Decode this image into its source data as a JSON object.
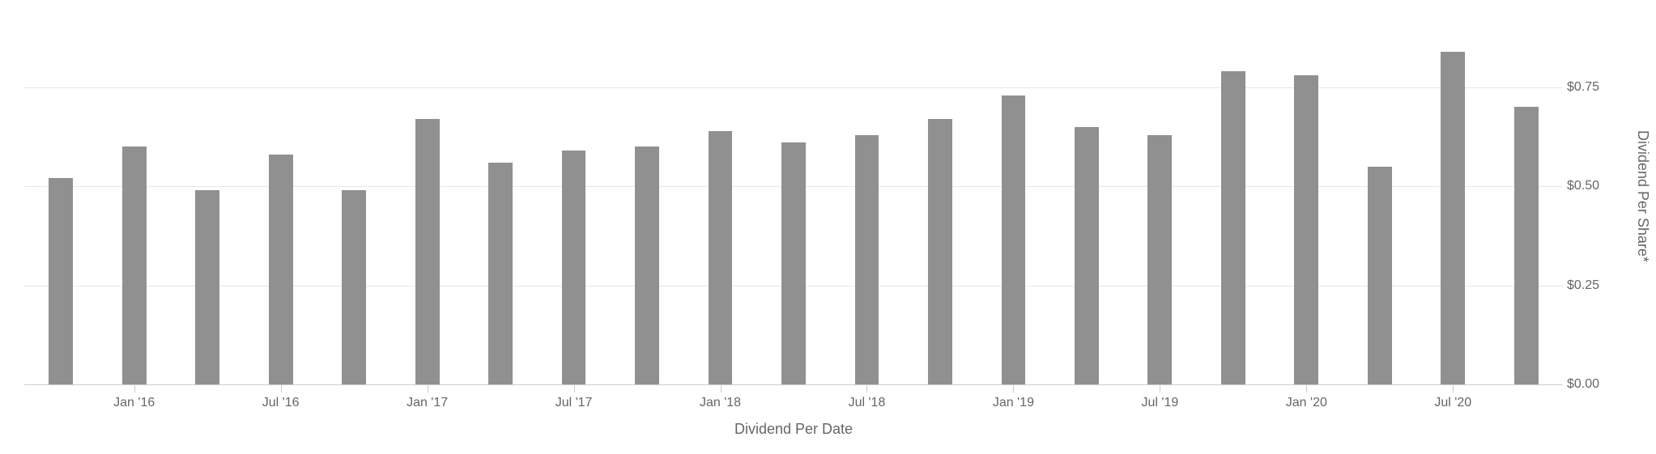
{
  "chart": {
    "type": "bar",
    "x_axis_title": "Dividend Per Date",
    "y_axis_title": "Dividend Per Share*",
    "background_color": "#ffffff",
    "grid_color": "#e6e6e6",
    "baseline_color": "#cccccc",
    "tick_text_color": "#666666",
    "axis_title_color": "#666666",
    "bar_color": "#909090",
    "tick_fontsize": 16,
    "title_fontsize": 18,
    "y_axis": {
      "min": 0.0,
      "max": 0.95,
      "ticks": [
        {
          "value": 0.0,
          "label": "$0.00"
        },
        {
          "value": 0.25,
          "label": "$0.25"
        },
        {
          "value": 0.5,
          "label": "$0.50"
        },
        {
          "value": 0.75,
          "label": "$0.75"
        }
      ]
    },
    "x_axis": {
      "tick_labels": [
        "Jan '16",
        "Jul '16",
        "Jan '17",
        "Jul '17",
        "Jan '18",
        "Jul '18",
        "Jan '19",
        "Jul '19",
        "Jan '20",
        "Jul '20"
      ],
      "tick_positions": [
        1,
        3,
        5,
        7,
        9,
        11,
        13,
        15,
        17,
        19
      ]
    },
    "bars": {
      "count": 21,
      "bar_width_fraction": 0.33,
      "values": [
        0.52,
        0.6,
        0.49,
        0.58,
        0.49,
        0.67,
        0.56,
        0.59,
        0.6,
        0.64,
        0.61,
        0.63,
        0.67,
        0.73,
        0.65,
        0.63,
        0.79,
        0.78,
        0.55,
        0.84,
        0.7
      ]
    }
  }
}
